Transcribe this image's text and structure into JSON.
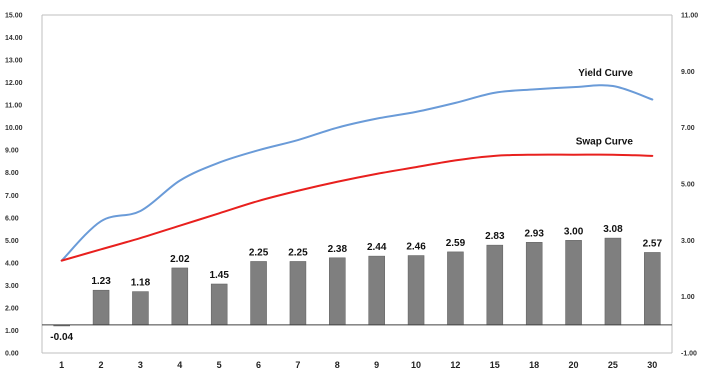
{
  "chart_data": {
    "type": "bar",
    "categories": [
      "1",
      "2",
      "3",
      "4",
      "5",
      "6",
      "7",
      "8",
      "9",
      "10",
      "12",
      "15",
      "18",
      "20",
      "25",
      "30"
    ],
    "bars": {
      "values": [
        -0.04,
        1.23,
        1.18,
        2.02,
        1.45,
        2.25,
        2.25,
        2.38,
        2.44,
        2.46,
        2.59,
        2.83,
        2.93,
        3.0,
        3.08,
        2.57
      ],
      "labels": [
        "-0.04",
        "1.23",
        "1.18",
        "2.02",
        "1.45",
        "2.25",
        "2.25",
        "2.38",
        "2.44",
        "2.46",
        "2.59",
        "2.83",
        "2.93",
        "3.00",
        "3.08",
        "2.57"
      ],
      "axis": "right",
      "color": "#7f7f7f"
    },
    "series": [
      {
        "name": "Yield Curve",
        "axis": "left",
        "color": "#6a9bd8",
        "values": [
          4.1,
          5.85,
          6.3,
          7.65,
          8.45,
          9.0,
          9.45,
          10.0,
          10.4,
          10.7,
          11.1,
          11.55,
          11.7,
          11.8,
          11.85,
          11.25
        ]
      },
      {
        "name": "Swap Curve",
        "axis": "left",
        "color": "#e8201e",
        "values": [
          4.1,
          4.6,
          5.1,
          5.65,
          6.2,
          6.75,
          7.2,
          7.6,
          7.95,
          8.25,
          8.55,
          8.75,
          8.8,
          8.8,
          8.8,
          8.75
        ]
      }
    ],
    "left_axis": {
      "range": [
        0,
        15
      ],
      "ticks": [
        "0.00",
        "1.00",
        "2.00",
        "3.00",
        "4.00",
        "5.00",
        "6.00",
        "7.00",
        "8.00",
        "9.00",
        "10.00",
        "11.00",
        "12.00",
        "13.00",
        "14.00",
        "15.00"
      ]
    },
    "right_axis": {
      "range": [
        -1,
        11
      ],
      "ticks": [
        "-1.00",
        "1.00",
        "3.00",
        "5.00",
        "7.00",
        "9.00",
        "11.00"
      ]
    },
    "grid": false,
    "legend": "inline"
  }
}
